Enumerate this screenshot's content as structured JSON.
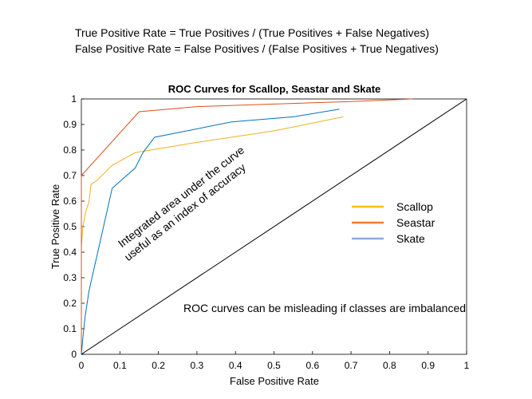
{
  "notes": {
    "formula_tpr": "True Positive Rate = True Positives / (True Positives + False Negatives)",
    "formula_fpr": "False Positive Rate = False Positives / (False Positives + True Negatives)"
  },
  "chart_data": {
    "type": "line",
    "title": "ROC Curves for Scallop, Seastar and Skate",
    "xlabel": "False Positive Rate",
    "ylabel": "True Positive Rate",
    "xlim": [
      0,
      1
    ],
    "ylim": [
      0,
      1
    ],
    "xticks": [
      "0",
      "0.1",
      "0.2",
      "0.3",
      "0.4",
      "0.5",
      "0.6",
      "0.7",
      "0.8",
      "0.9",
      "1"
    ],
    "yticks": [
      "0",
      "0.1",
      "0.2",
      "0.3",
      "0.4",
      "0.5",
      "0.6",
      "0.7",
      "0.8",
      "0.9",
      "1"
    ],
    "grid": false,
    "legend_position": "right",
    "series": [
      {
        "name": "Scallop",
        "color": "#EDB120",
        "x": [
          0,
          0,
          0.004,
          0.01,
          0.02,
          0.025,
          0.04,
          0.08,
          0.14,
          0.3,
          0.5,
          0.68
        ],
        "y": [
          0,
          0.42,
          0.5,
          0.55,
          0.6,
          0.665,
          0.68,
          0.74,
          0.79,
          0.83,
          0.875,
          0.93
        ]
      },
      {
        "name": "Seastar",
        "color": "#D95319",
        "x": [
          0,
          0,
          0.15,
          0.3,
          0.5,
          0.7,
          0.86
        ],
        "y": [
          0,
          0.7,
          0.95,
          0.97,
          0.98,
          0.99,
          1.0
        ]
      },
      {
        "name": "Skate",
        "color": "#0072BD",
        "x": [
          0,
          0.005,
          0.01,
          0.02,
          0.05,
          0.08,
          0.14,
          0.16,
          0.19,
          0.39,
          0.55,
          0.67
        ],
        "y": [
          0,
          0.08,
          0.15,
          0.25,
          0.45,
          0.65,
          0.73,
          0.79,
          0.85,
          0.91,
          0.93,
          0.96
        ]
      },
      {
        "name": "",
        "color": "#000000",
        "x": [
          0,
          1
        ],
        "y": [
          0,
          1
        ]
      }
    ],
    "legend_swatches": {
      "Scallop": "#FFC000",
      "Seastar": "#ED7D31",
      "Skate": "#8FAADC"
    },
    "annotations": [
      {
        "text": "Integrated area under the curve",
        "x": 0.265,
        "y": 0.605,
        "rotate": -38
      },
      {
        "text": "useful as an index of accuracy",
        "x": 0.275,
        "y": 0.545,
        "rotate": -38
      },
      {
        "text": "ROC curves can be misleading if classes are imbalanced",
        "x": 0.265,
        "y": 0.165,
        "rotate": 0
      }
    ]
  }
}
